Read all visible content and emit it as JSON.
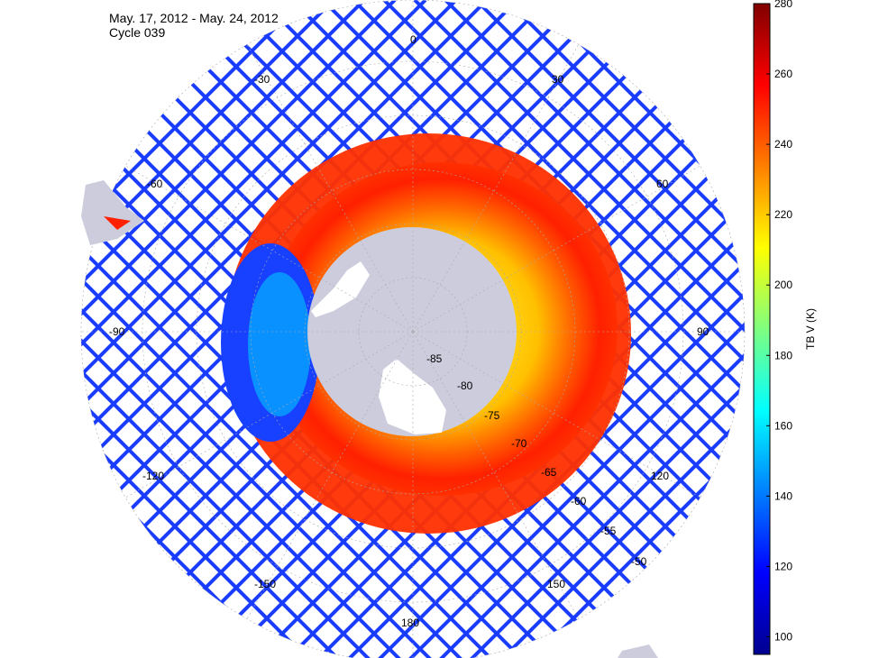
{
  "title": {
    "date_range": "May. 17, 2012 - May. 24, 2012",
    "cycle": "Cycle 039"
  },
  "map": {
    "projection": "south polar stereographic",
    "longitude_labels": [
      "0",
      "30",
      "60",
      "-30",
      "-60",
      "90",
      "-90",
      "120",
      "-120",
      "150",
      "-150",
      "180"
    ],
    "latitude_labels": [
      "-85",
      "-80",
      "-75",
      "-70",
      "-65",
      "-60",
      "-55",
      "-50"
    ],
    "land_color": "#ccccdd",
    "no_data_color": "#ffffff"
  },
  "colorbar": {
    "label": "TB V (K)",
    "min": 95,
    "max": 280,
    "ticks": [
      "100",
      "120",
      "140",
      "160",
      "180",
      "200",
      "220",
      "240",
      "260",
      "280"
    ],
    "colormap": "jet",
    "colors": [
      "#00008f",
      "#0000ff",
      "#00ffff",
      "#ffff00",
      "#ff0000",
      "#800000"
    ]
  }
}
